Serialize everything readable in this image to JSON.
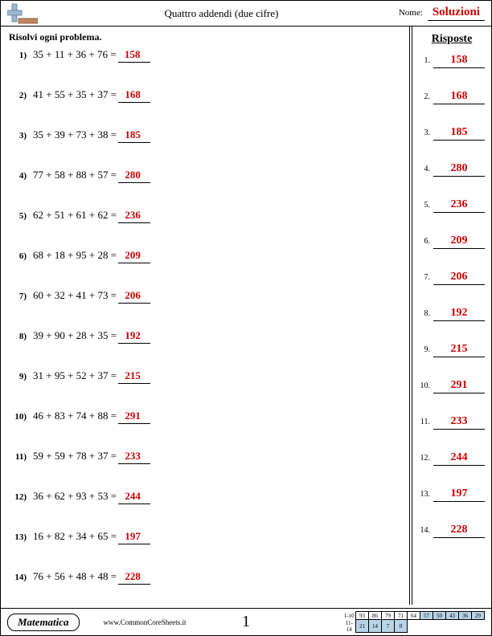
{
  "header": {
    "title": "Quattro addendi (due cifre)",
    "name_label": "Nome:",
    "solutions_label": "Soluzioni"
  },
  "instruction": "Risolvi ogni problema.",
  "answers_header": "Risposte",
  "problems": [
    {
      "n": "1)",
      "expr": "35 + 11 + 36 + 76 =",
      "ans": "158"
    },
    {
      "n": "2)",
      "expr": "41 + 55 + 35 + 37 =",
      "ans": "168"
    },
    {
      "n": "3)",
      "expr": "35 + 39 + 73 + 38 =",
      "ans": "185"
    },
    {
      "n": "4)",
      "expr": "77 + 58 + 88 + 57 =",
      "ans": "280"
    },
    {
      "n": "5)",
      "expr": "62 + 51 + 61 + 62 =",
      "ans": "236"
    },
    {
      "n": "6)",
      "expr": "68 + 18 + 95 + 28 =",
      "ans": "209"
    },
    {
      "n": "7)",
      "expr": "60 + 32 + 41 + 73 =",
      "ans": "206"
    },
    {
      "n": "8)",
      "expr": "39 + 90 + 28 + 35 =",
      "ans": "192"
    },
    {
      "n": "9)",
      "expr": "31 + 95 + 52 + 37 =",
      "ans": "215"
    },
    {
      "n": "10)",
      "expr": "46 + 83 + 74 + 88 =",
      "ans": "291"
    },
    {
      "n": "11)",
      "expr": "59 + 59 + 78 + 37 =",
      "ans": "233"
    },
    {
      "n": "12)",
      "expr": "36 + 62 + 93 + 53 =",
      "ans": "244"
    },
    {
      "n": "13)",
      "expr": "16 + 82 + 34 + 65 =",
      "ans": "197"
    },
    {
      "n": "14)",
      "expr": "76 + 56 + 48 + 48 =",
      "ans": "228"
    }
  ],
  "answers": [
    {
      "i": "1.",
      "v": "158"
    },
    {
      "i": "2.",
      "v": "168"
    },
    {
      "i": "3.",
      "v": "185"
    },
    {
      "i": "4.",
      "v": "280"
    },
    {
      "i": "5.",
      "v": "236"
    },
    {
      "i": "6.",
      "v": "209"
    },
    {
      "i": "7.",
      "v": "206"
    },
    {
      "i": "8.",
      "v": "192"
    },
    {
      "i": "9.",
      "v": "215"
    },
    {
      "i": "10.",
      "v": "291"
    },
    {
      "i": "11.",
      "v": "233"
    },
    {
      "i": "12.",
      "v": "244"
    },
    {
      "i": "13.",
      "v": "197"
    },
    {
      "i": "14.",
      "v": "228"
    }
  ],
  "footer": {
    "subject": "Matematica",
    "site": "www.CommonCoreSheets.it",
    "page": "1",
    "score_row1_label": "1-10",
    "score_row2_label": "11-14",
    "row1": [
      "93",
      "86",
      "79",
      "71",
      "64",
      "57",
      "50",
      "43",
      "36",
      "29"
    ],
    "row2": [
      "21",
      "14",
      "7",
      "0"
    ]
  },
  "colors": {
    "answer_text": "#cc0000",
    "blue_cell": "#b8d4e8",
    "logo_blue": "#9db8d0",
    "logo_brown": "#c08860"
  }
}
